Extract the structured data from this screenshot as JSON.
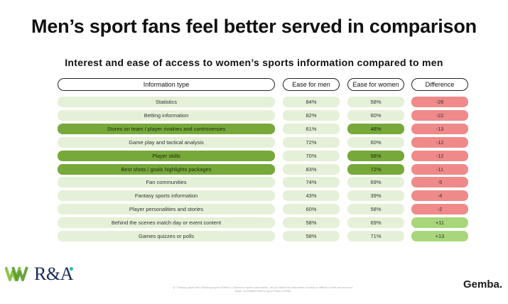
{
  "title": "Men’s sport fans feel better served in comparison",
  "subtitle": "Interest and ease of access to women’s sports information compared to men",
  "headers": {
    "type": "Information type",
    "men": "Ease for men",
    "women": "Ease for women",
    "diff": "Difference"
  },
  "rows": [
    {
      "type": "Statistics",
      "men": "84%",
      "women": "58%",
      "diff": "-26",
      "highlight_type": false,
      "highlight_women": false,
      "diff_color": "#f08a8a"
    },
    {
      "type": "Betting information",
      "men": "82%",
      "women": "60%",
      "diff": "-22",
      "highlight_type": false,
      "highlight_women": false,
      "diff_color": "#f08a8a"
    },
    {
      "type": "Stores on team / player rivalries and controversies",
      "men": "61%",
      "women": "48%",
      "diff": "-13",
      "highlight_type": true,
      "highlight_women": true,
      "diff_color": "#f08a8a"
    },
    {
      "type": "Game play and tactical analysis",
      "men": "72%",
      "women": "60%",
      "diff": "-12",
      "highlight_type": false,
      "highlight_women": false,
      "diff_color": "#f08a8a"
    },
    {
      "type": "Player skills",
      "men": "70%",
      "women": "58%",
      "diff": "-12",
      "highlight_type": true,
      "highlight_women": true,
      "diff_color": "#f08a8a"
    },
    {
      "type": "Best shots / goals highlights packages",
      "men": "83%",
      "women": "72%",
      "diff": "-11",
      "highlight_type": true,
      "highlight_women": true,
      "diff_color": "#f08a8a"
    },
    {
      "type": "Fan communities",
      "men": "74%",
      "women": "69%",
      "diff": "-5",
      "highlight_type": false,
      "highlight_women": false,
      "diff_color": "#f08a8a"
    },
    {
      "type": "Fantasy sports information",
      "men": "43%",
      "women": "39%",
      "diff": "-4",
      "highlight_type": false,
      "highlight_women": false,
      "diff_color": "#f08a8a"
    },
    {
      "type": "Player personalities and stories",
      "men": "60%",
      "women": "58%",
      "diff": "-2",
      "highlight_type": false,
      "highlight_women": false,
      "diff_color": "#f08a8a"
    },
    {
      "type": "Behind the scenes match day or event content",
      "men": "58%",
      "women": "69%",
      "diff": "+11",
      "highlight_type": false,
      "highlight_women": false,
      "diff_color": "#a9d67a"
    },
    {
      "type": "Games quizzes or polls",
      "men": "58%",
      "women": "71%",
      "diff": "+13",
      "highlight_type": false,
      "highlight_women": false,
      "diff_color": "#a9d67a"
    }
  ],
  "footer": {
    "question": "Q: Thinking about the following types of Men's / Women's sports information, do you think this information is easy or difficult to find and access?",
    "base": "Base: Committed Men's Sport Fans (n=996)"
  },
  "logos": {
    "left_w": "W",
    "ra": "R&A",
    "gemba": "Gemba."
  },
  "colors": {
    "light_green": "#e5f0d8",
    "highlight_green": "#77a83a",
    "negative_red": "#f08a8a",
    "positive_green": "#a9d67a"
  }
}
